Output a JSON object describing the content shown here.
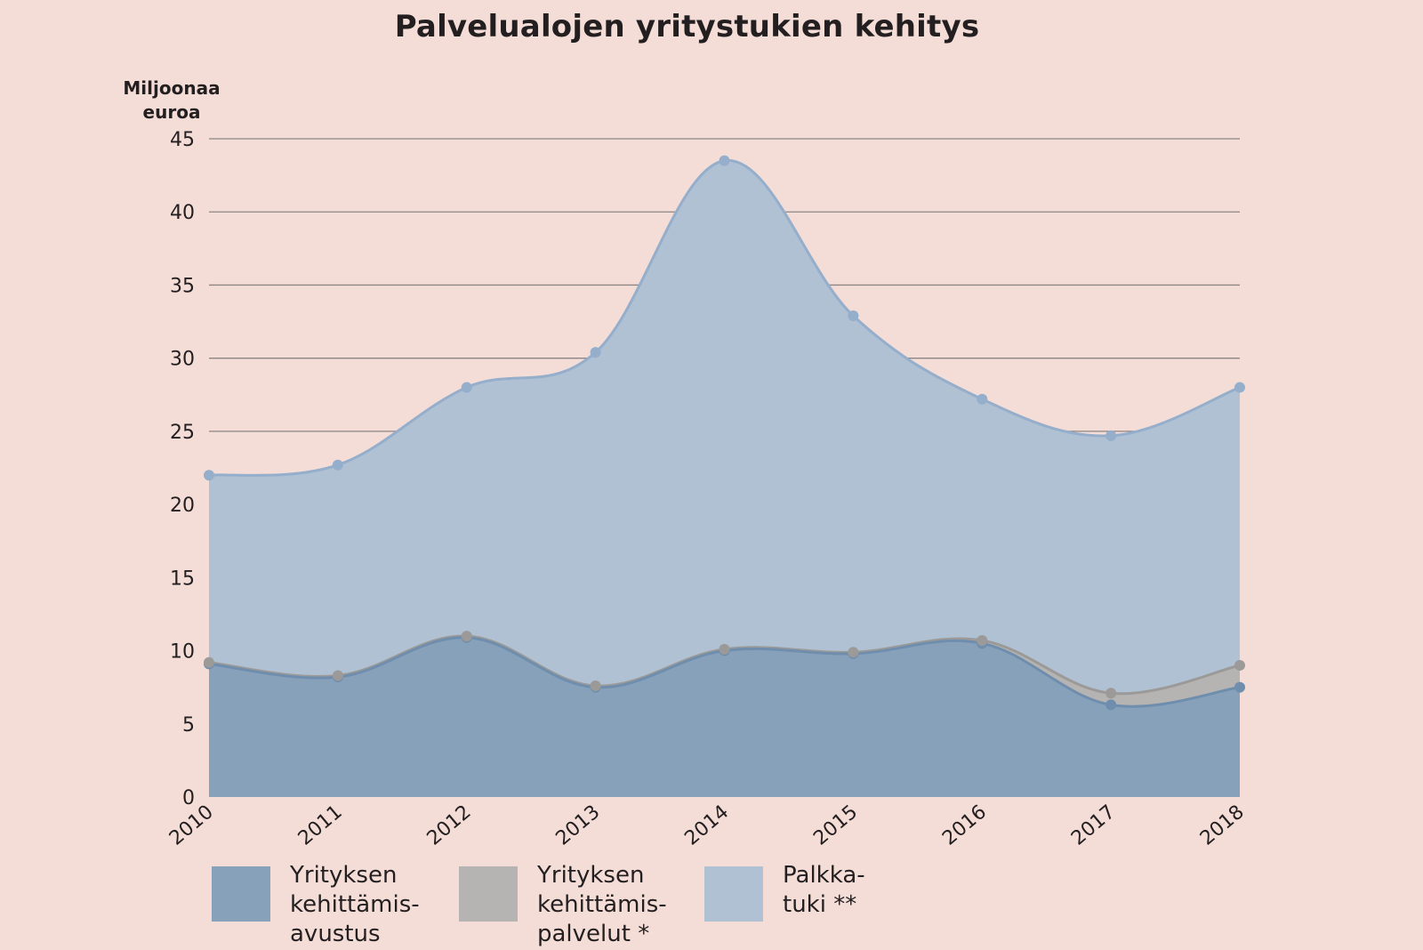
{
  "chart_data": {
    "type": "area",
    "stacked": true,
    "title": "Palvelualojen yritystukien kehitys",
    "ylabel_lines": [
      "Miljoonaa",
      "euroa"
    ],
    "xlabel": "",
    "x": [
      "2010",
      "2011",
      "2012",
      "2013",
      "2014",
      "2015",
      "2016",
      "2017",
      "2018"
    ],
    "ylim": [
      0,
      45
    ],
    "yticks": [
      "0",
      "5",
      "10",
      "15",
      "20",
      "25",
      "30",
      "35",
      "40",
      "45"
    ],
    "grid": true,
    "legend_position": "bottom",
    "series": [
      {
        "key": "avustus",
        "label_lines": [
          "Yrityksen",
          "kehittämis-",
          "avustus"
        ],
        "color": "#87a1bb",
        "line_color": "#6f8eae",
        "values": [
          9.1,
          8.2,
          10.9,
          7.5,
          10.0,
          9.8,
          10.5,
          6.3,
          7.5
        ]
      },
      {
        "key": "palvelut",
        "label_lines": [
          "Yrityksen",
          "kehittämis-",
          "palvelut *"
        ],
        "color": "#b5b4b2",
        "line_color": "#9b9a98",
        "values": [
          0.1,
          0.1,
          0.1,
          0.1,
          0.1,
          0.1,
          0.2,
          0.8,
          1.5
        ]
      },
      {
        "key": "palkkatuki",
        "label_lines": [
          "Palkka-",
          "tuki **"
        ],
        "color": "#afc1d3",
        "line_color": "#95aecb",
        "values": [
          12.8,
          14.4,
          17.0,
          22.8,
          33.4,
          23.0,
          16.5,
          17.6,
          19.0
        ]
      }
    ],
    "totals": [
      22.0,
      22.7,
      28.0,
      30.4,
      43.5,
      32.9,
      27.2,
      24.7,
      28.0
    ]
  }
}
